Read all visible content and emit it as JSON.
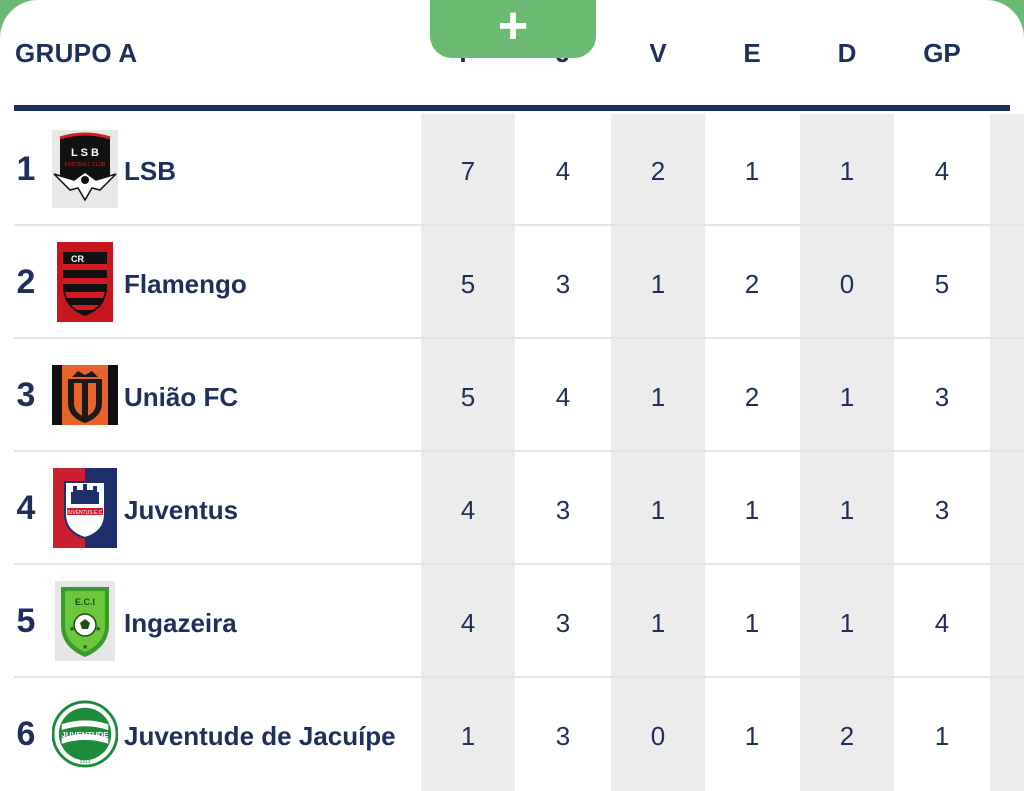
{
  "group": {
    "title": "GRUPO A"
  },
  "add_button": {
    "icon": "plus-icon",
    "glyph": "+",
    "color": "#6aba72"
  },
  "columns": [
    "P",
    "J",
    "V",
    "E",
    "D",
    "GP"
  ],
  "rows": [
    {
      "position": "1",
      "team": "LSB",
      "crest_icon": "lsb-eagle-crest-icon",
      "stats": [
        "7",
        "4",
        "2",
        "1",
        "1",
        "4"
      ]
    },
    {
      "position": "2",
      "team": "Flamengo",
      "crest_icon": "flamengo-crest-icon",
      "stats": [
        "5",
        "3",
        "1",
        "2",
        "0",
        "5"
      ]
    },
    {
      "position": "3",
      "team": "União FC",
      "crest_icon": "uniao-fc-crest-icon",
      "stats": [
        "5",
        "4",
        "1",
        "2",
        "1",
        "3"
      ]
    },
    {
      "position": "4",
      "team": "Juventus",
      "crest_icon": "juventus-crest-icon",
      "stats": [
        "4",
        "3",
        "1",
        "1",
        "1",
        "3"
      ]
    },
    {
      "position": "5",
      "team": "Ingazeira",
      "crest_icon": "ingazeira-crest-icon",
      "stats": [
        "4",
        "3",
        "1",
        "1",
        "1",
        "4"
      ]
    },
    {
      "position": "6",
      "team": "Juventude de Jacuípe",
      "crest_icon": "juventude-crest-icon",
      "stats": [
        "1",
        "3",
        "0",
        "1",
        "2",
        "1"
      ]
    }
  ],
  "colors": {
    "text": "#1f2f5c",
    "header_rule": "#1d2c5e",
    "accent": "#6aba72",
    "column_shade": "#ececec"
  }
}
